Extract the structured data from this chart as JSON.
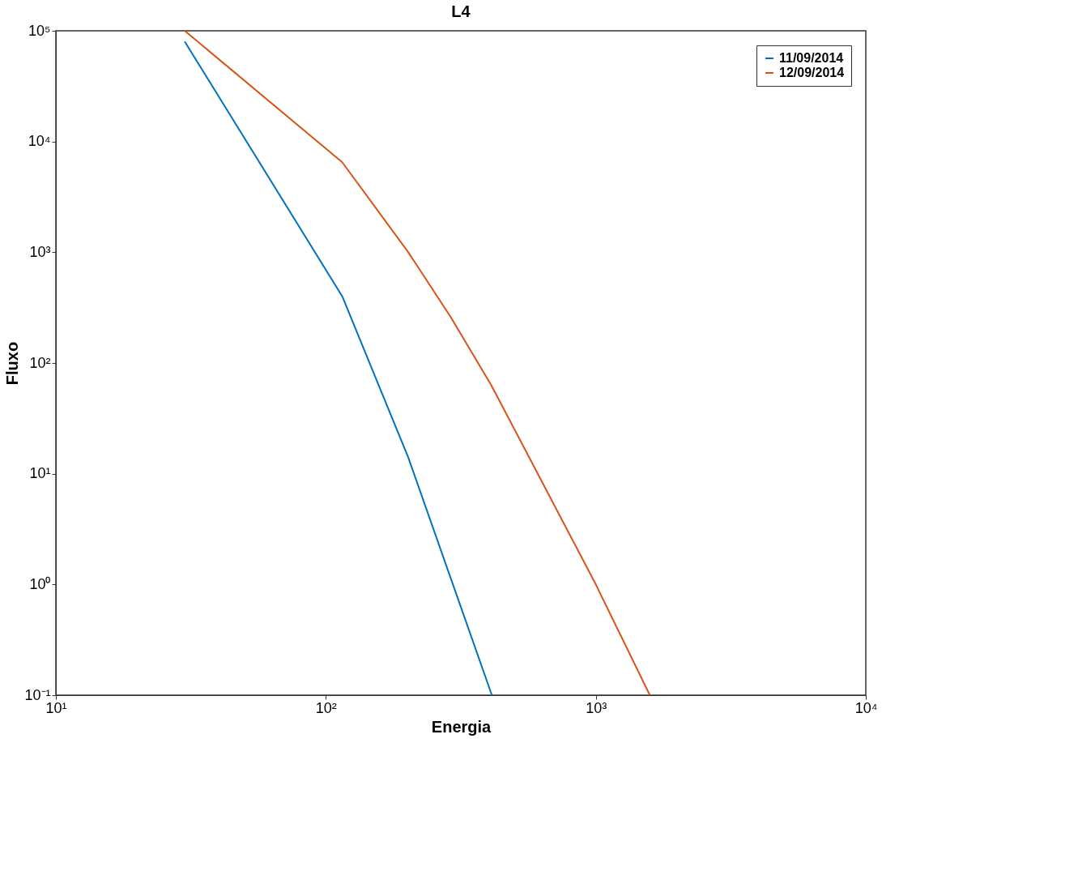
{
  "chart_data": {
    "type": "line",
    "title": "L4",
    "xlabel": "Energia",
    "ylabel": "Fluxo",
    "log": "xy",
    "xlim": [
      10,
      10000
    ],
    "ylim": [
      0.1,
      100000
    ],
    "xticks": [
      {
        "value": 10,
        "label": "10¹"
      },
      {
        "value": 100,
        "label": "10²"
      },
      {
        "value": 1000,
        "label": "10³"
      },
      {
        "value": 10000,
        "label": "10⁴"
      }
    ],
    "yticks": [
      {
        "value": 0.1,
        "label": "10⁻¹"
      },
      {
        "value": 1,
        "label": "10⁰"
      },
      {
        "value": 10,
        "label": "10¹"
      },
      {
        "value": 100,
        "label": "10²"
      },
      {
        "value": 1000,
        "label": "10³"
      },
      {
        "value": 10000,
        "label": "10⁴"
      },
      {
        "value": 100000,
        "label": "10⁵"
      }
    ],
    "grid": false,
    "legend": "top right",
    "line_style": "solid",
    "marker": "none",
    "series": [
      {
        "name": "11/09/2014",
        "color": "#0072bd",
        "x": [
          30,
          115,
          202,
          412
        ],
        "values": [
          80000,
          400,
          14,
          0.1
        ]
      },
      {
        "name": "12/09/2014",
        "color": "#d95319",
        "x": [
          30,
          115,
          202,
          290,
          410,
          1000,
          1585
        ],
        "values": [
          100000,
          6500,
          1000,
          260,
          63,
          1,
          0.1
        ]
      }
    ]
  }
}
